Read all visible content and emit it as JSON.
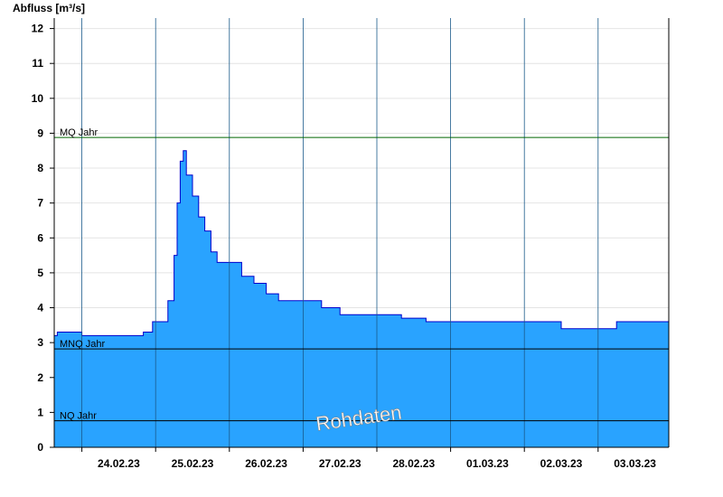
{
  "chart_data": {
    "type": "area",
    "ylabel": "Abfluss [m³/s]",
    "ylim": [
      0,
      12.3
    ],
    "yticks": [
      0,
      1,
      2,
      3,
      4,
      5,
      6,
      7,
      8,
      9,
      10,
      11,
      12
    ],
    "x_start": "23.02.23 15:00",
    "x_end": "03.03.23 23:00",
    "categories": [
      "24.02.23",
      "25.02.23",
      "26.02.23",
      "27.02.23",
      "28.02.23",
      "01.03.23",
      "02.03.23",
      "03.03.23"
    ],
    "grid": true,
    "fill_color": "#29a3ff",
    "line_color": "#0000cc",
    "series": [
      {
        "x": [
          "23.02.23 15:00",
          "23.02.23 16:00",
          "24.02.23 00:00",
          "24.02.23 12:00",
          "24.02.23 20:00",
          "24.02.23 23:00",
          "25.02.23 02:00",
          "25.02.23 04:00",
          "25.02.23 06:00",
          "25.02.23 07:00",
          "25.02.23 08:00",
          "25.02.23 09:00",
          "25.02.23 10:00",
          "25.02.23 12:00",
          "25.02.23 14:00",
          "25.02.23 16:00",
          "25.02.23 18:00",
          "25.02.23 20:00",
          "26.02.23 00:00",
          "26.02.23 04:00",
          "26.02.23 08:00",
          "26.02.23 12:00",
          "26.02.23 16:00",
          "27.02.23 00:00",
          "27.02.23 06:00",
          "27.02.23 12:00",
          "27.02.23 18:00",
          "28.02.23 00:00",
          "28.02.23 08:00",
          "28.02.23 16:00",
          "01.03.23 00:00",
          "01.03.23 12:00",
          "02.03.23 00:00",
          "02.03.23 12:00",
          "02.03.23 18:00",
          "03.03.23 00:00",
          "03.03.23 06:00",
          "03.03.23 12:00",
          "03.03.23 18:00",
          "03.03.23 23:00"
        ],
        "y": [
          3.2,
          3.3,
          3.2,
          3.2,
          3.3,
          3.6,
          3.6,
          4.2,
          5.5,
          7.0,
          8.2,
          8.5,
          7.8,
          7.2,
          6.6,
          6.2,
          5.6,
          5.3,
          5.3,
          4.9,
          4.7,
          4.4,
          4.2,
          4.2,
          4.0,
          3.8,
          3.8,
          3.8,
          3.7,
          3.6,
          3.6,
          3.6,
          3.6,
          3.4,
          3.4,
          3.4,
          3.6,
          3.6,
          3.6,
          3.6
        ]
      }
    ],
    "reference_lines": [
      {
        "label": "MQ Jahr",
        "value": 8.88,
        "color": "#006600"
      },
      {
        "label": "MNQ Jahr",
        "value": 2.82,
        "color": "#000000"
      },
      {
        "label": "NQ Jahr",
        "value": 0.76,
        "color": "#000000"
      }
    ],
    "watermark": "Rohdaten"
  }
}
